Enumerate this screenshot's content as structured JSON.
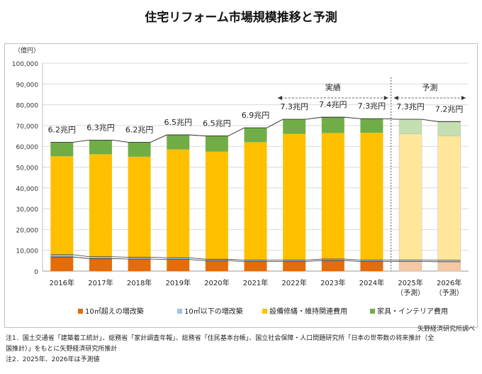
{
  "title": "住宅リフォーム市場規模推移と予測",
  "source": "矢野経済研究所調べ",
  "notes": [
    "注1．国土交通省「建築着工統計」、総務省「家計調査年報」、総務省「住民基本台帳」、国立社会保障・人口問題研究所「日本の世帯数の将来推計（全",
    "国推計）」をもとに矢野経済研究所推計",
    "注2．2025年、2026年は予測値"
  ],
  "chart_data": {
    "type": "bar",
    "stacked": true,
    "yunit": "（億円）",
    "ylim": [
      0,
      100000
    ],
    "yticks": [
      "0",
      "10,000",
      "20,000",
      "30,000",
      "40,000",
      "50,000",
      "60,000",
      "70,000",
      "80,000",
      "90,000",
      "100,000"
    ],
    "categories": [
      "2016年",
      "2017年",
      "2018年",
      "2019年",
      "2020年",
      "2021年",
      "2022年",
      "2023年",
      "2024年",
      "2025年",
      "2026年"
    ],
    "category_sublabels": [
      "",
      "",
      "",
      "",
      "",
      "",
      "",
      "",
      "",
      "（予測）",
      "（予測）"
    ],
    "forecast_from_index": 9,
    "totals_labels": [
      "6.2兆円",
      "6.3兆円",
      "6.2兆円",
      "6.5兆円",
      "6.5兆円",
      "6.9兆円",
      "7.3兆円",
      "7.4兆円",
      "7.3兆円",
      "7.3兆円",
      "7.2兆円"
    ],
    "series": [
      {
        "name": "10㎡超えの増改築",
        "color": "#e46c0a",
        "forecast_color": "#f6c7a3",
        "values": [
          6800,
          6000,
          5800,
          5600,
          5000,
          4600,
          4600,
          5100,
          4600,
          4600,
          4500
        ]
      },
      {
        "name": "10㎡以下の増改築",
        "color": "#9dc3e6",
        "forecast_color": "#d6e6f4",
        "values": [
          1100,
          900,
          900,
          800,
          700,
          700,
          700,
          700,
          700,
          700,
          700
        ]
      },
      {
        "name": "設備修繕・維持関連費用",
        "color": "#ffc000",
        "forecast_color": "#ffe699",
        "values": [
          47300,
          49300,
          48300,
          52100,
          51800,
          56700,
          60700,
          60600,
          61200,
          60700,
          59800
        ]
      },
      {
        "name": "家具・インテリア費用",
        "color": "#70ad47",
        "forecast_color": "#c5dfb3",
        "values": [
          6800,
          6800,
          7000,
          7000,
          7500,
          6900,
          7000,
          7600,
          6800,
          7000,
          6900
        ]
      }
    ],
    "annotations": {
      "actual": "実績",
      "forecast": "予測"
    },
    "grid": true,
    "legend_position": "bottom"
  }
}
